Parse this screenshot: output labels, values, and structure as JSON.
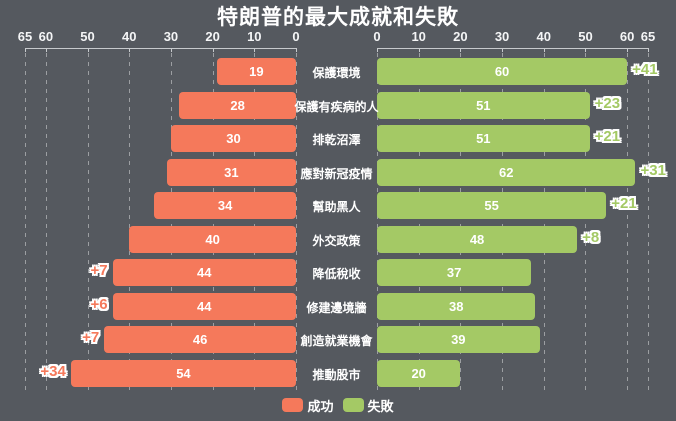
{
  "title": "特朗普的最大成就和失敗",
  "legend": {
    "success": "成功",
    "failure": "失敗"
  },
  "colors": {
    "background": "#55595f",
    "success": "#f5795b",
    "failure": "#a4c965",
    "text": "#ffffff",
    "axis": "#c7cacd"
  },
  "chart_data": {
    "type": "bar",
    "subtype": "diverging-butterfly",
    "title": "特朗普的最大成就和失敗",
    "legend_position": "bottom-center",
    "grid": "dashed-vertical",
    "axis": {
      "ticks": [
        0,
        10,
        20,
        30,
        40,
        50,
        60,
        65
      ],
      "left_axis_order": "65 to 0 (right-aligned bars)",
      "right_axis_order": "0 to 65 (left-aligned bars)",
      "xlim": [
        0,
        65
      ]
    },
    "categories": [
      "保護環境",
      "保護有疾病的人",
      "排乾沼澤",
      "應對新冠疫情",
      "幫助黑人",
      "外交政策",
      "降低稅收",
      "修建邊境牆",
      "創造就業機會",
      "推動股市"
    ],
    "series": [
      {
        "name": "成功",
        "color": "#f5795b",
        "values": [
          19,
          28,
          30,
          31,
          34,
          40,
          44,
          44,
          46,
          54
        ]
      },
      {
        "name": "失敗",
        "color": "#a4c965",
        "values": [
          60,
          51,
          51,
          62,
          55,
          48,
          37,
          38,
          39,
          20
        ]
      }
    ],
    "annotations": [
      {
        "category": "保護環境",
        "label": "+41",
        "side": "right"
      },
      {
        "category": "保護有疾病的人",
        "label": "+23",
        "side": "right"
      },
      {
        "category": "排乾沼澤",
        "label": "+21",
        "side": "right"
      },
      {
        "category": "應對新冠疫情",
        "label": "+31",
        "side": "right"
      },
      {
        "category": "幫助黑人",
        "label": "+21",
        "side": "right"
      },
      {
        "category": "外交政策",
        "label": "+8",
        "side": "right"
      },
      {
        "category": "降低稅收",
        "label": "+7",
        "side": "left"
      },
      {
        "category": "修建邊境牆",
        "label": "+6",
        "side": "left"
      },
      {
        "category": "創造就業機會",
        "label": "+7",
        "side": "left"
      },
      {
        "category": "推動股市",
        "label": "+34",
        "side": "left"
      }
    ]
  }
}
